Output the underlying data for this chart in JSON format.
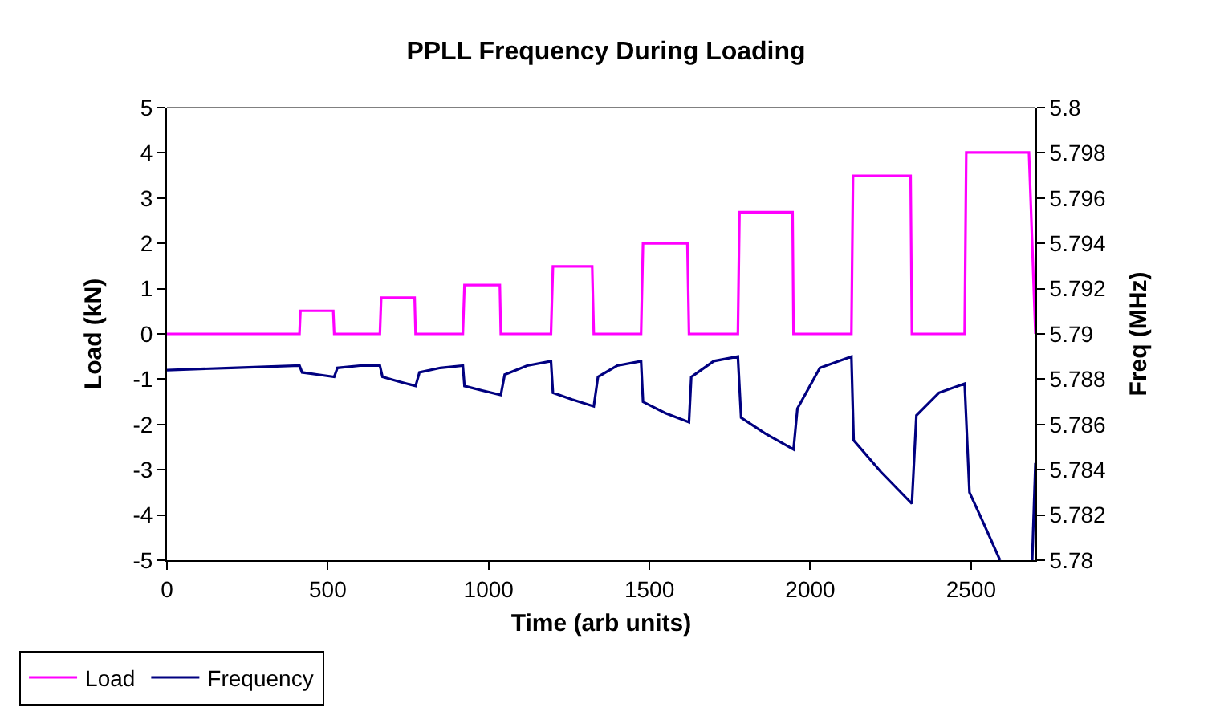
{
  "chart_data": {
    "type": "line",
    "title": "PPLL Frequency During Loading",
    "xlabel": "Time (arb units)",
    "ylabel": "Load (kN)",
    "y2label": "Freq (MHz)",
    "xlim": [
      0,
      2700
    ],
    "xticks": [
      0,
      500,
      1000,
      1500,
      2000,
      2500
    ],
    "ylim": [
      -5,
      5
    ],
    "yticks": [
      -5,
      -4,
      -3,
      -2,
      -1,
      0,
      1,
      2,
      3,
      4,
      5
    ],
    "y2lim": [
      5.78,
      5.8
    ],
    "y2ticks": [
      5.78,
      5.782,
      5.784,
      5.786,
      5.788,
      5.79,
      5.792,
      5.794,
      5.796,
      5.798,
      5.8
    ],
    "legend": "bottom left",
    "marker": "none",
    "line_style": "solid",
    "series": [
      {
        "name": "Load",
        "color": "#ff00ff",
        "x": [
          0,
          412,
          415,
          517,
          520,
          662,
          666,
          770,
          773,
          920,
          925,
          1035,
          1038,
          1194,
          1200,
          1322,
          1327,
          1474,
          1480,
          1618,
          1623,
          1775,
          1780,
          1945,
          1948,
          2128,
          2133,
          2312,
          2316,
          2480,
          2485,
          2680,
          2700
        ],
        "values": [
          0,
          0,
          0.51,
          0.51,
          0,
          0,
          0.8,
          0.8,
          0,
          0,
          1.08,
          1.08,
          0,
          0,
          1.49,
          1.49,
          0,
          0,
          2.0,
          2.0,
          0,
          0,
          2.69,
          2.69,
          0,
          0,
          3.49,
          3.49,
          0,
          0,
          4.01,
          4.01,
          0
        ]
      },
      {
        "name": "Frequency",
        "color": "#000080",
        "axis": "y2",
        "x": [
          0,
          200,
          412,
          420,
          470,
          520,
          530,
          600,
          662,
          670,
          720,
          773,
          785,
          850,
          920,
          925,
          980,
          1038,
          1050,
          1120,
          1194,
          1200,
          1260,
          1327,
          1340,
          1400,
          1474,
          1480,
          1550,
          1623,
          1630,
          1700,
          1775,
          1785,
          1860,
          1948,
          1960,
          2030,
          2128,
          2135,
          2220,
          2316,
          2330,
          2400,
          2480,
          2495,
          2540,
          2590,
          2600,
          2680,
          2690,
          2700
        ],
        "values": [
          5.7884,
          5.7885,
          5.7886,
          5.7883,
          5.7882,
          5.7881,
          5.7885,
          5.7886,
          5.7886,
          5.7881,
          5.7879,
          5.7877,
          5.7883,
          5.7885,
          5.7886,
          5.7877,
          5.7875,
          5.7873,
          5.7882,
          5.7886,
          5.7888,
          5.7874,
          5.7871,
          5.7868,
          5.7881,
          5.7886,
          5.7888,
          5.787,
          5.7865,
          5.7861,
          5.7881,
          5.7888,
          5.789,
          5.7863,
          5.7856,
          5.7849,
          5.7867,
          5.7885,
          5.789,
          5.7853,
          5.7839,
          5.7825,
          5.7864,
          5.7874,
          5.7878,
          5.783,
          5.7816,
          5.78,
          null,
          null,
          5.78,
          5.7843
        ]
      }
    ]
  }
}
